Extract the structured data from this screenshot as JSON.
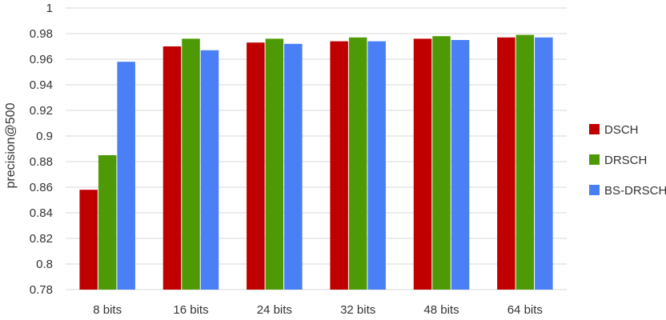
{
  "chart_data": {
    "type": "bar",
    "title": "",
    "xlabel": "",
    "ylabel": "precision@500",
    "ylim": [
      0.78,
      1.0
    ],
    "yticks": [
      "0.78",
      "0.8",
      "0.82",
      "0.84",
      "0.86",
      "0.88",
      "0.9",
      "0.92",
      "0.94",
      "0.96",
      "0.98",
      "1"
    ],
    "grid": true,
    "legend_position": "right",
    "categories": [
      "8 bits",
      "16 bits",
      "24 bits",
      "32 bits",
      "48 bits",
      "64 bits"
    ],
    "series": [
      {
        "name": "DSCH",
        "color": "#C00000",
        "values": [
          0.858,
          0.97,
          0.973,
          0.974,
          0.976,
          0.977
        ]
      },
      {
        "name": "DRSCH",
        "color": "#4E9A06",
        "values": [
          0.885,
          0.976,
          0.976,
          0.977,
          0.978,
          0.979
        ]
      },
      {
        "name": "BS-DRSCH",
        "color": "#4A7FF5",
        "values": [
          0.958,
          0.967,
          0.972,
          0.974,
          0.975,
          0.977
        ]
      }
    ]
  }
}
